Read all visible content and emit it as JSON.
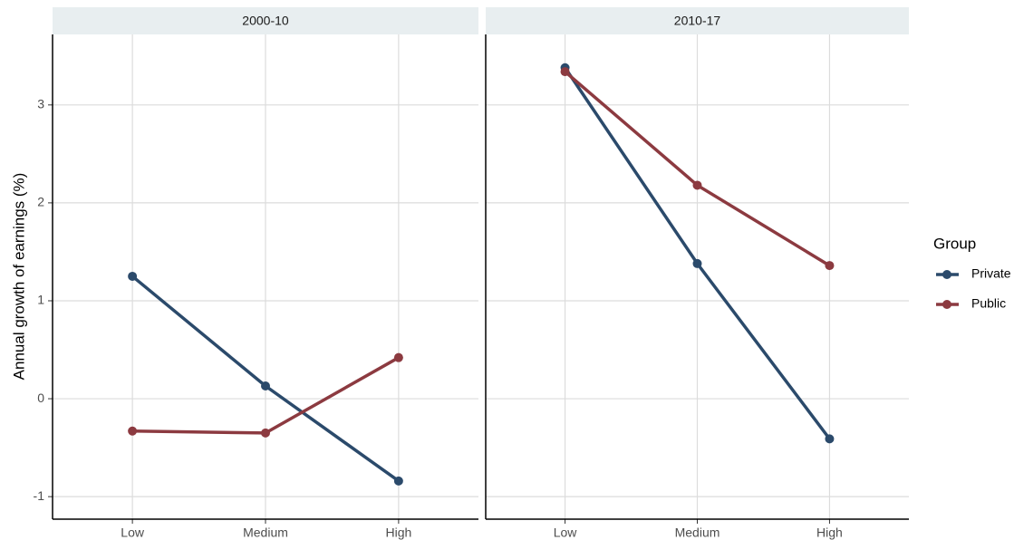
{
  "chart_data": [
    {
      "type": "line",
      "subtitle": "2000-10",
      "ylabel": "Annual growth of earnings (%)",
      "legend_title": "Group",
      "categories": [
        "Low",
        "Medium",
        "High"
      ],
      "series": [
        {
          "name": "Private",
          "color": "#2b4a6b",
          "values": [
            1.25,
            0.13,
            -0.84
          ]
        },
        {
          "name": "Public",
          "color": "#8c3a40",
          "values": [
            -0.33,
            -0.35,
            0.42
          ]
        }
      ],
      "ylim": [
        -1.23,
        3.72
      ],
      "yticks": [
        -1,
        0,
        1,
        2,
        3
      ],
      "grid": true
    },
    {
      "type": "line",
      "subtitle": "2010-17",
      "categories": [
        "Low",
        "Medium",
        "High"
      ],
      "series": [
        {
          "color": "#2b4a6b",
          "values": [
            3.38,
            1.38,
            -0.41
          ]
        },
        {
          "color": "#8c3a40",
          "values": [
            3.34,
            2.18,
            1.36
          ]
        }
      ],
      "ylim": [
        -1.23,
        3.72
      ],
      "yticks": [
        -1,
        0,
        1,
        2,
        3
      ],
      "grid": true
    }
  ]
}
